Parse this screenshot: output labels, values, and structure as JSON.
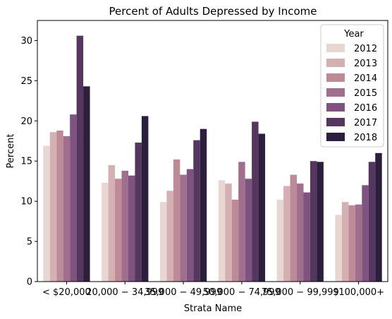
{
  "chart_data": {
    "type": "bar",
    "title": "Percent of Adults Depressed by Income",
    "xlabel": "Strata Name",
    "ylabel": "Percent",
    "ylim": [
      0,
      32.5
    ],
    "yticks": [
      0,
      5,
      10,
      15,
      20,
      25,
      30
    ],
    "grid": false,
    "legend_title": "Year",
    "legend_position": "top-right",
    "categories": [
      "< $20,000",
      "$20,000 - $34,999",
      "$35,000 - $49,999",
      "$50,000 - $74,999",
      "$75,000 - $99,999",
      "$100,000+"
    ],
    "category_tick_labels": [
      "< $20,000",
      "20,000 − 34,999",
      "35,000 − 49,999",
      "50,000 − 74,999",
      "75,000 − 99,999",
      "$100,000+"
    ],
    "series": [
      {
        "name": "2012",
        "color": "#e8d6d2",
        "values": [
          16.9,
          12.3,
          9.9,
          12.6,
          10.2,
          8.3
        ]
      },
      {
        "name": "2013",
        "color": "#d5b0b2",
        "values": [
          18.6,
          14.5,
          11.3,
          12.2,
          11.9,
          9.9
        ]
      },
      {
        "name": "2014",
        "color": "#bd8b97",
        "values": [
          18.8,
          12.8,
          15.2,
          10.2,
          13.3,
          9.5
        ]
      },
      {
        "name": "2015",
        "color": "#a06f8d",
        "values": [
          18.1,
          13.8,
          13.3,
          14.9,
          12.2,
          9.6
        ]
      },
      {
        "name": "2016",
        "color": "#7f5380",
        "values": [
          20.8,
          13.2,
          14.0,
          12.8,
          11.1,
          12.0
        ]
      },
      {
        "name": "2017",
        "color": "#55365f",
        "values": [
          30.6,
          17.3,
          17.6,
          19.9,
          15.0,
          14.9
        ]
      },
      {
        "name": "2018",
        "color": "#2c1e3d",
        "values": [
          24.3,
          20.6,
          19.0,
          18.4,
          14.9,
          16.0
        ]
      }
    ]
  }
}
